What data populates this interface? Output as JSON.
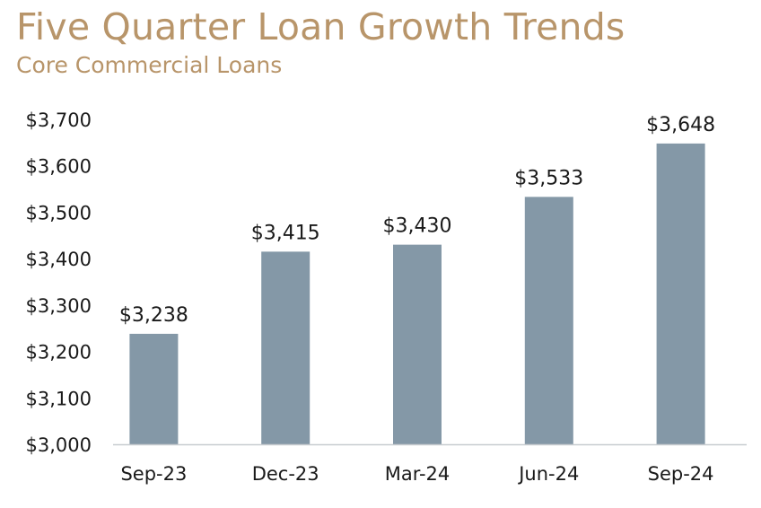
{
  "title": "Five Quarter Loan Growth Trends",
  "subtitle": "Core Commercial Loans",
  "colors": {
    "title": "#b8956a",
    "bar": "#8498a7",
    "axis": "#c8ccd0"
  },
  "chart_data": {
    "type": "bar",
    "title": "Five Quarter Loan Growth Trends",
    "subtitle": "Core Commercial Loans",
    "categories": [
      "Sep-23",
      "Dec-23",
      "Mar-24",
      "Jun-24",
      "Sep-24"
    ],
    "values": [
      3238,
      3415,
      3430,
      3533,
      3648
    ],
    "data_labels": [
      "$3,238",
      "$3,415",
      "$3,430",
      "$3,533",
      "$3,648"
    ],
    "ylim": [
      3000,
      3700
    ],
    "yticks": [
      3000,
      3100,
      3200,
      3300,
      3400,
      3500,
      3600,
      3700
    ],
    "ytick_labels": [
      "$3,000",
      "$3,100",
      "$3,200",
      "$3,300",
      "$3,400",
      "$3,500",
      "$3,600",
      "$3,700"
    ],
    "xlabel": "",
    "ylabel": "",
    "grid": false,
    "legend": "none"
  }
}
